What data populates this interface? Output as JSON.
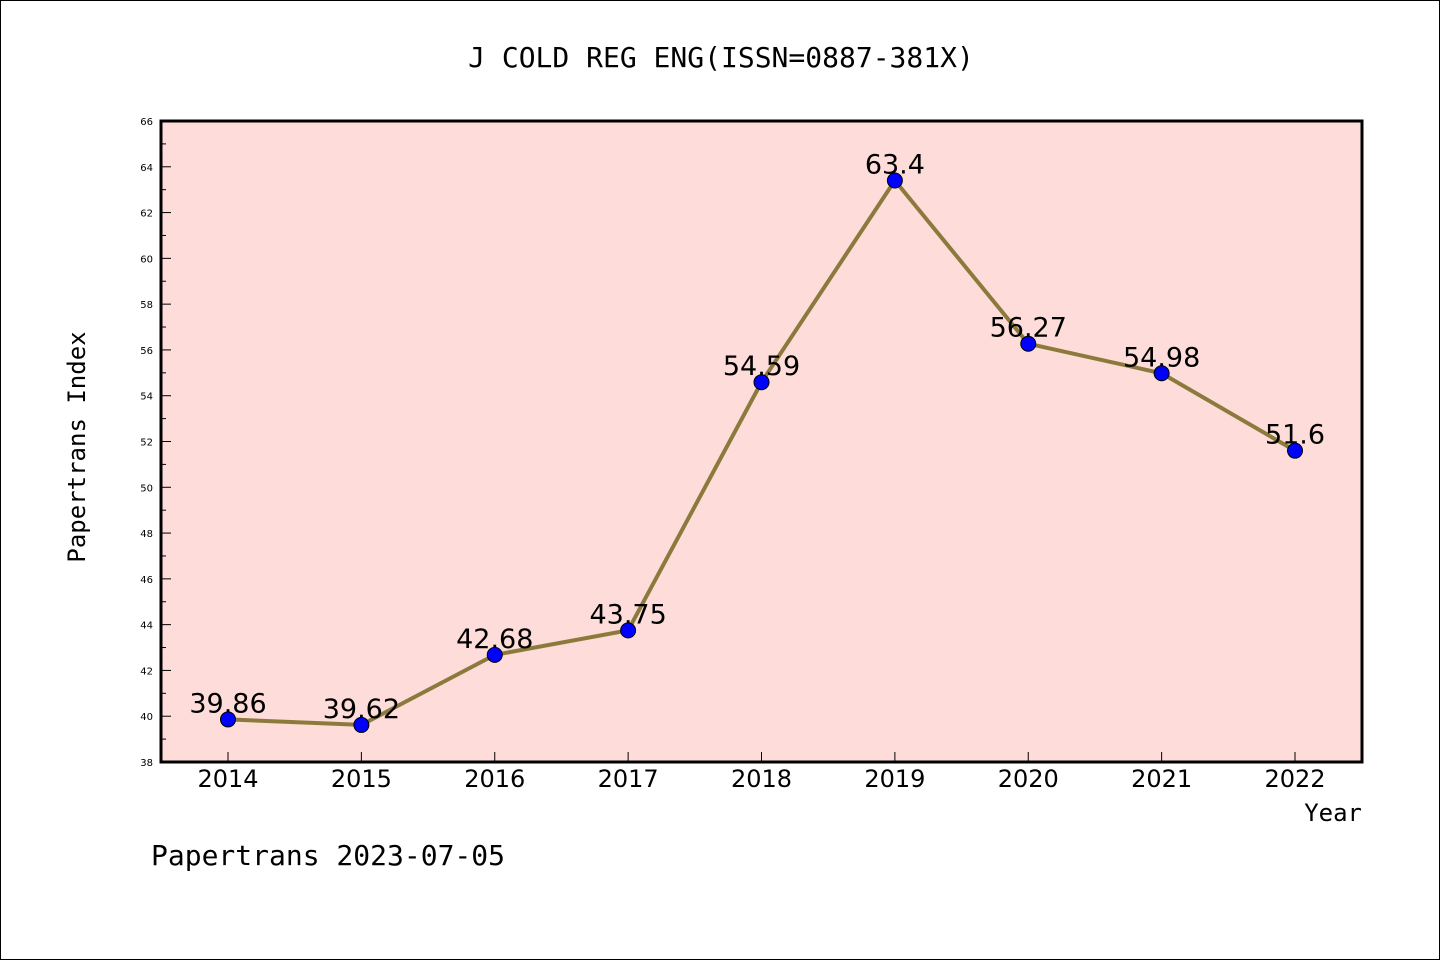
{
  "chart_data": {
    "type": "line",
    "title": "J COLD REG ENG(ISSN=0887-381X)",
    "xlabel": "Year",
    "ylabel": "Papertrans Index",
    "footer": "Papertrans 2023-07-05",
    "x": [
      "2014",
      "2015",
      "2016",
      "2017",
      "2018",
      "2019",
      "2020",
      "2021",
      "2022"
    ],
    "series": [
      {
        "values": [
          39.86,
          39.62,
          42.68,
          43.75,
          54.59,
          63.4,
          56.27,
          54.98,
          51.6
        ],
        "labels": [
          "39.86",
          "39.62",
          "42.68",
          "43.75",
          "54.59",
          "63.4",
          "56.27",
          "54.98",
          "51.6"
        ],
        "line_color": "#8c7a3c",
        "marker_color": "#0000ff"
      }
    ],
    "ylim": [
      38,
      66
    ],
    "yticks": [
      "38",
      "40",
      "42",
      "44",
      "46",
      "48",
      "50",
      "52",
      "54",
      "56",
      "58",
      "60",
      "62",
      "64",
      "66"
    ],
    "plot_background": "#fddcd9",
    "grid": false,
    "legend": "none"
  }
}
